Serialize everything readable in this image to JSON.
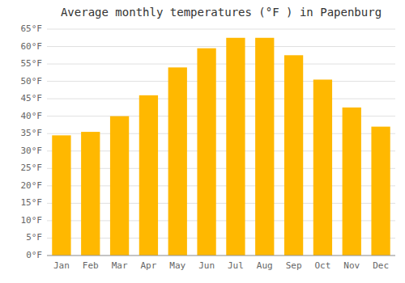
{
  "chart_data": {
    "type": "bar",
    "title": "Average monthly temperatures (°F ) in Papenburg",
    "categories": [
      "Jan",
      "Feb",
      "Mar",
      "Apr",
      "May",
      "Jun",
      "Jul",
      "Aug",
      "Sep",
      "Oct",
      "Nov",
      "Dec"
    ],
    "values": [
      34.5,
      35.5,
      40.0,
      46.0,
      54.0,
      59.5,
      62.5,
      62.5,
      57.5,
      50.5,
      42.5,
      37.0
    ],
    "color": "#FFB800",
    "ylim": [
      0,
      65
    ],
    "yticks": [
      {
        "value": 0,
        "label": "0°F"
      },
      {
        "value": 5,
        "label": "5°F"
      },
      {
        "value": 10,
        "label": "10°F"
      },
      {
        "value": 15,
        "label": "15°F"
      },
      {
        "value": 20,
        "label": "20°F"
      },
      {
        "value": 25,
        "label": "25°F"
      },
      {
        "value": 30,
        "label": "30°F"
      },
      {
        "value": 35,
        "label": "35°F"
      },
      {
        "value": 40,
        "label": "40°F"
      },
      {
        "value": 45,
        "label": "45°F"
      },
      {
        "value": 50,
        "label": "50°F"
      },
      {
        "value": 55,
        "label": "55°F"
      },
      {
        "value": 60,
        "label": "60°F"
      },
      {
        "value": 65,
        "label": "65°F"
      }
    ],
    "grid": true
  }
}
